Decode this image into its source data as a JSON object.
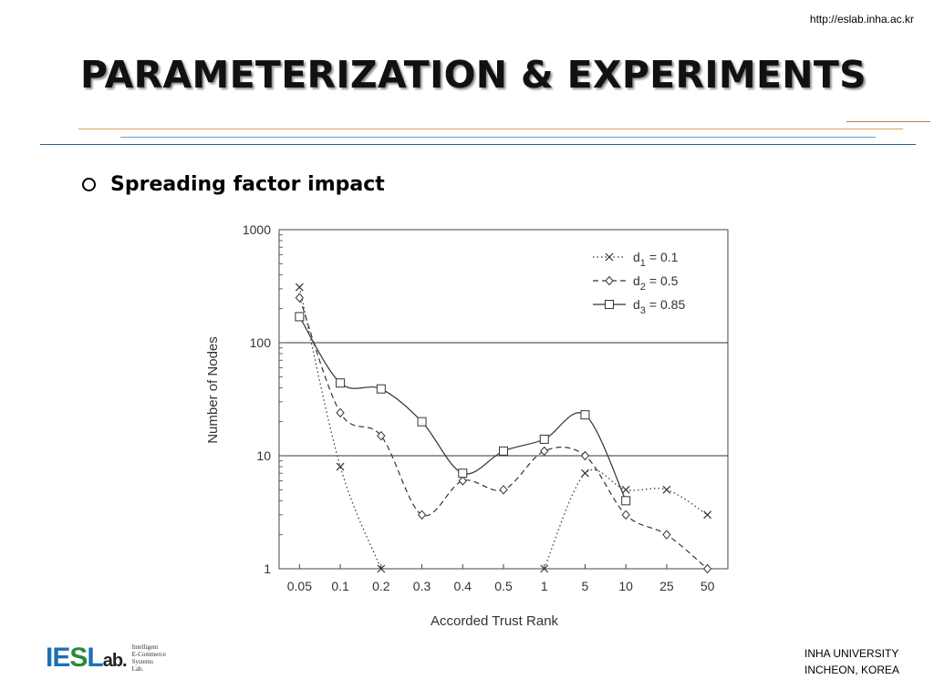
{
  "header": {
    "url": "http://eslab.inha.ac.kr",
    "title": "PARAMETERIZATION & EXPERIMENTS"
  },
  "bullet": {
    "text": "Spreading factor impact"
  },
  "chart_data": {
    "type": "line",
    "y_scale": "log",
    "ylim": [
      1,
      1000
    ],
    "y_ticks": [
      "1",
      "10",
      "100",
      "1000"
    ],
    "categories": [
      "0.05",
      "0.1",
      "0.2",
      "0.3",
      "0.4",
      "0.5",
      "1",
      "5",
      "10",
      "25",
      "50"
    ],
    "xlabel": "Accorded Trust Rank",
    "ylabel": "Number of Nodes",
    "gridlines_y": [
      10,
      100
    ],
    "legend_position": "top-right",
    "series": [
      {
        "name": "d",
        "sub": "1",
        "value_label": "= 0.1",
        "marker": "x",
        "dash": "dotted",
        "values": [
          310,
          8,
          1,
          null,
          null,
          null,
          1,
          7,
          5,
          5,
          3
        ],
        "color": "#333333"
      },
      {
        "name": "d",
        "sub": "2",
        "value_label": "= 0.5",
        "marker": "diamond",
        "dash": "dashed",
        "values": [
          250,
          24,
          15,
          3,
          6,
          5,
          11,
          10,
          3,
          2,
          1
        ],
        "color": "#333333"
      },
      {
        "name": "d",
        "sub": "3",
        "value_label": "= 0.85",
        "marker": "square",
        "dash": "solid",
        "values": [
          170,
          44,
          39,
          20,
          7,
          11,
          14,
          23,
          4,
          null,
          null
        ],
        "color": "#333333"
      }
    ]
  },
  "footer": {
    "line1": "INHA UNIVERSITY",
    "line2": "INCHEON, KOREA"
  },
  "logo": {
    "i": "I",
    "e": "E",
    "s": "S",
    "l": "L",
    "ab": "ab.",
    "small": [
      "Intelligent",
      "E-Commerce",
      "Systems",
      "Lab."
    ]
  },
  "rules": {
    "colors": [
      "#d36a5a",
      "#e0a060",
      "#6aa0c8",
      "#2a5f8f"
    ]
  }
}
